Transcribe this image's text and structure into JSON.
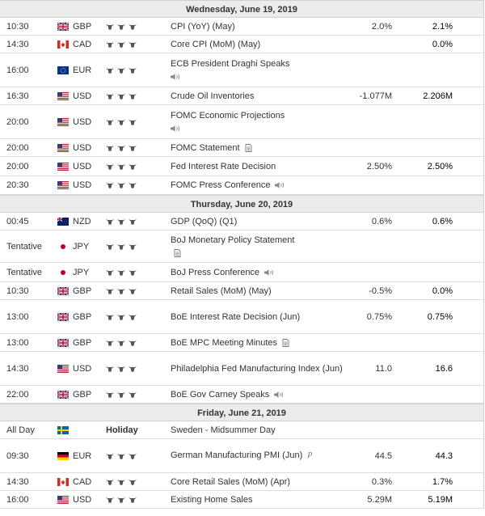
{
  "days": [
    {
      "date": "Wednesday, June 19, 2019",
      "rows": [
        {
          "time": "10:30",
          "flag": "gb",
          "currency": "GBP",
          "importance": 3,
          "event": "CPI (YoY) (May)",
          "actual": "2.0%",
          "forecast": "2.1%",
          "h": 22
        },
        {
          "time": "14:30",
          "flag": "ca",
          "currency": "CAD",
          "importance": 3,
          "event": "Core CPI (MoM) (May)",
          "actual": "",
          "forecast": "0.0%",
          "h": 22
        },
        {
          "time": "16:00",
          "flag": "eu",
          "currency": "EUR",
          "importance": 3,
          "event": "ECB President Draghi Speaks",
          "icon": "speaker",
          "icon_newline": true,
          "actual": "",
          "forecast": "",
          "h": 42
        },
        {
          "time": "16:30",
          "flag": "us",
          "currency": "USD",
          "importance": 3,
          "event": "Crude Oil Inventories",
          "actual": "-1.077M",
          "forecast": "2.206M",
          "h": 22
        },
        {
          "time": "20:00",
          "flag": "us",
          "currency": "USD",
          "importance": 3,
          "event": "FOMC Economic Projections",
          "icon": "speaker",
          "icon_newline": true,
          "actual": "",
          "forecast": "",
          "h": 42
        },
        {
          "time": "20:00",
          "flag": "us",
          "currency": "USD",
          "importance": 3,
          "event": "FOMC Statement",
          "icon": "document",
          "actual": "",
          "forecast": "",
          "h": 22
        },
        {
          "time": "20:00",
          "flag": "us",
          "currency": "USD",
          "importance": 3,
          "event": "Fed Interest Rate Decision",
          "actual": "2.50%",
          "forecast": "2.50%",
          "h": 24
        },
        {
          "time": "20:30",
          "flag": "us",
          "currency": "USD",
          "importance": 3,
          "event": "FOMC Press Conference",
          "icon": "speaker",
          "actual": "",
          "forecast": "",
          "h": 23
        }
      ]
    },
    {
      "date": "Thursday, June 20, 2019",
      "rows": [
        {
          "time": "00:45",
          "flag": "nz",
          "currency": "NZD",
          "importance": 3,
          "event": "GDP (QoQ) (Q1)",
          "actual": "0.6%",
          "forecast": "0.6%",
          "h": 22
        },
        {
          "time": "Tentative",
          "flag": "jp",
          "currency": "JPY",
          "importance": 3,
          "event": "BoJ Monetary Policy Statement",
          "icon": "document",
          "icon_newline": true,
          "actual": "",
          "forecast": "",
          "h": 40
        },
        {
          "time": "Tentative",
          "flag": "jp",
          "currency": "JPY",
          "importance": 3,
          "event": "BoJ Press Conference",
          "icon": "speaker",
          "actual": "",
          "forecast": "",
          "h": 24
        },
        {
          "time": "10:30",
          "flag": "gb",
          "currency": "GBP",
          "importance": 3,
          "event": "Retail Sales (MoM) (May)",
          "actual": "-0.5%",
          "forecast": "0.0%",
          "h": 22
        },
        {
          "time": "13:00",
          "flag": "gb",
          "currency": "GBP",
          "importance": 3,
          "event": "BoE Interest Rate Decision (Jun)",
          "actual": "0.75%",
          "forecast": "0.75%",
          "h": 42
        },
        {
          "time": "13:00",
          "flag": "gb",
          "currency": "GBP",
          "importance": 3,
          "event": "BoE MPC Meeting Minutes",
          "icon": "document",
          "actual": "",
          "forecast": "",
          "h": 22
        },
        {
          "time": "14:30",
          "flag": "us",
          "currency": "USD",
          "importance": 3,
          "event": "Philadelphia Fed Manufacturing Index (Jun)",
          "actual": "11.0",
          "forecast": "16.6",
          "h": 42
        },
        {
          "time": "22:00",
          "flag": "gb",
          "currency": "GBP",
          "importance": 3,
          "event": "BoE Gov Carney Speaks",
          "icon": "speaker",
          "actual": "",
          "forecast": "",
          "h": 22
        }
      ]
    },
    {
      "date": "Friday, June 21, 2019",
      "rows": [
        {
          "time": "All Day",
          "flag": "se",
          "currency": "",
          "holiday": "Holiday",
          "importance": 0,
          "event": "Sweden - Midsummer Day",
          "actual": "",
          "forecast": "",
          "h": 22
        },
        {
          "time": "09:30",
          "flag": "de",
          "currency": "EUR",
          "importance": 3,
          "event": "German Manufacturing PMI (Jun)",
          "icon": "preliminary",
          "actual": "44.5",
          "forecast": "44.3",
          "h": 42
        },
        {
          "time": "14:30",
          "flag": "ca",
          "currency": "CAD",
          "importance": 3,
          "event": "Core Retail Sales (MoM) (Apr)",
          "actual": "0.3%",
          "forecast": "1.7%",
          "h": 22
        },
        {
          "time": "16:00",
          "flag": "us",
          "currency": "USD",
          "importance": 3,
          "event": "Existing Home Sales",
          "actual": "5.29M",
          "forecast": "5.19M",
          "h": 22
        }
      ]
    }
  ],
  "icons": {
    "speaker": "◀))",
    "document": "▤",
    "preliminary": "P",
    "bull": "bull-head-icon"
  },
  "colors": {
    "header_bg": "#ececec",
    "border": "#dcdcdc",
    "bull": "#555555"
  }
}
